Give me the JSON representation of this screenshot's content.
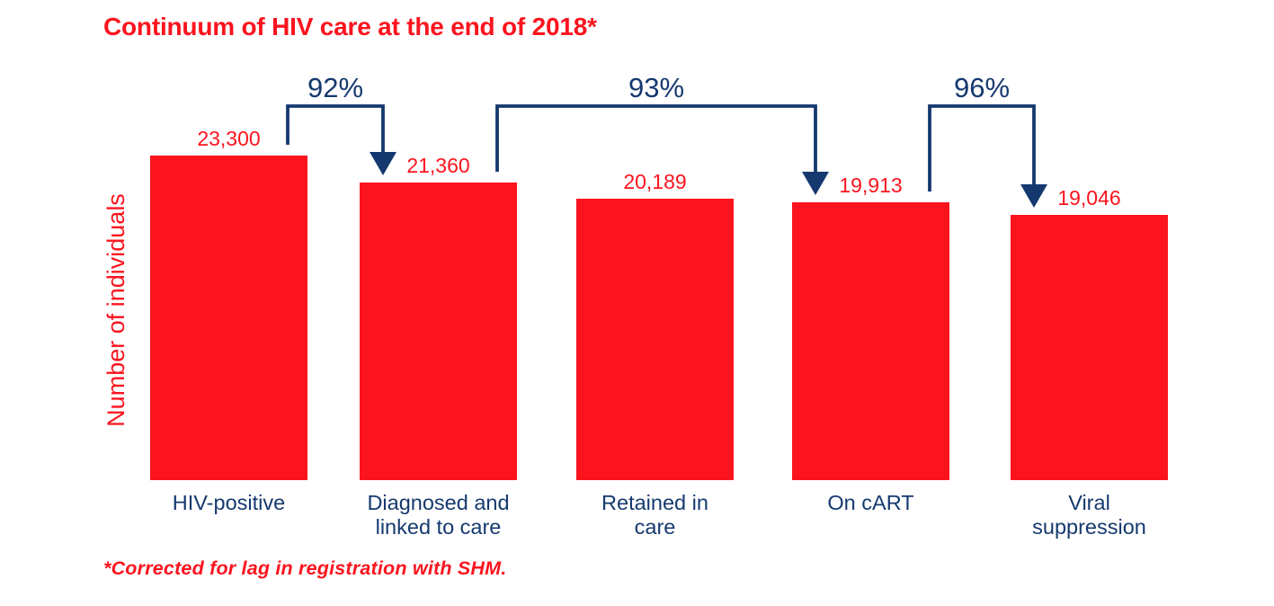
{
  "chart_data": {
    "type": "bar",
    "title": "Continuum of HIV care at the end of 2018*",
    "ylabel": "Number of individuals",
    "footnote": "*Corrected for lag in registration with SHM.",
    "categories": [
      "HIV-positive",
      "Diagnosed and\nlinked to care",
      "Retained in\ncare",
      "On cART",
      "Viral\nsuppression"
    ],
    "values": [
      23300,
      21360,
      20189,
      19913,
      19046
    ],
    "value_labels": [
      "23,300",
      "21,360",
      "20,189",
      "19,913",
      "19,046"
    ],
    "annotations": [
      {
        "label": "92%",
        "from": 0,
        "to": 1
      },
      {
        "label": "93%",
        "from": 1,
        "to": 3
      },
      {
        "label": "96%",
        "from": 3,
        "to": 4
      }
    ],
    "ylim": [
      0,
      23300
    ],
    "grid": false,
    "legend": "none",
    "colors": {
      "bar": "#fb141e",
      "red_text": "#fb141e",
      "navy": "#15396f",
      "background": "#ffffff"
    }
  }
}
